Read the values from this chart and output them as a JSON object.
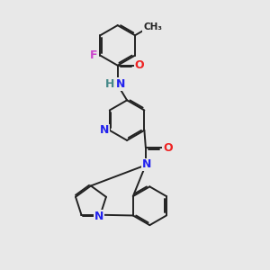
{
  "bg_color": "#e8e8e8",
  "bond_color": "#222222",
  "bond_width": 1.4,
  "dbo": 0.055,
  "N_color": "#2222ee",
  "O_color": "#ee2222",
  "F_color": "#cc44cc",
  "H_color": "#448888",
  "font_size": 9.0,
  "figsize": [
    3.0,
    3.0
  ],
  "dpi": 100,
  "xlim": [
    0,
    10
  ],
  "ylim": [
    0,
    10
  ]
}
